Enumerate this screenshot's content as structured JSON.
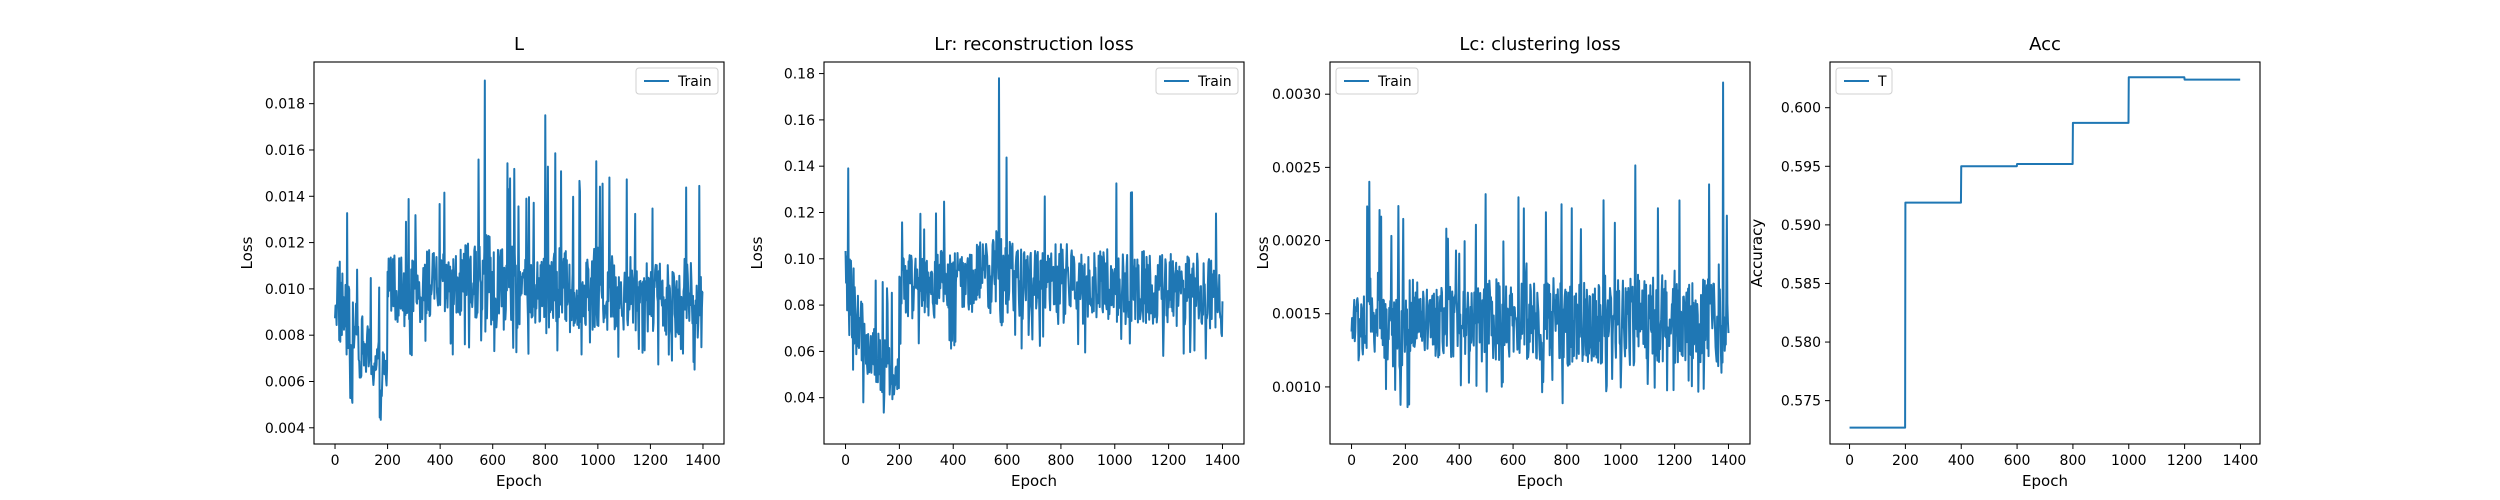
{
  "chart_data": [
    {
      "type": "line",
      "title": "L",
      "xlabel": "Epoch",
      "ylabel": "Loss",
      "xlim": [
        -80,
        1480
      ],
      "ylim": [
        0.0033,
        0.0198
      ],
      "xticks": [
        "0",
        "200",
        "400",
        "600",
        "800",
        "1000",
        "1200",
        "1400"
      ],
      "yticks": [
        "0.004",
        "0.006",
        "0.008",
        "0.010",
        "0.012",
        "0.014",
        "0.016",
        "0.018"
      ],
      "legend": {
        "position": "upper-right",
        "entries": [
          "Train"
        ]
      },
      "grid": false,
      "color": "#1f77b4",
      "series": [
        {
          "name": "Train",
          "x": [
            0,
            50,
            100,
            150,
            199,
            200,
            250,
            300,
            350,
            400,
            450,
            500,
            550,
            570,
            600,
            650,
            700,
            750,
            800,
            850,
            900,
            950,
            1000,
            1050,
            1100,
            1150,
            1200,
            1250,
            1300,
            1350,
            1400
          ],
          "mean": [
            0.01,
            0.0085,
            0.0075,
            0.0068,
            0.0062,
            0.0105,
            0.01,
            0.0098,
            0.0102,
            0.0101,
            0.01,
            0.0103,
            0.0104,
            0.0103,
            0.0102,
            0.0101,
            0.01,
            0.0099,
            0.01,
            0.0101,
            0.0098,
            0.01,
            0.0099,
            0.0098,
            0.01,
            0.0097,
            0.0098,
            0.0096,
            0.0097,
            0.0096,
            0.0092
          ],
          "low": [
            0.0062,
            0.005,
            0.0047,
            0.0042,
            0.004,
            0.0072,
            0.0068,
            0.0067,
            0.007,
            0.0071,
            0.007,
            0.0072,
            0.0073,
            0.0072,
            0.0072,
            0.0071,
            0.007,
            0.0069,
            0.007,
            0.0071,
            0.0068,
            0.007,
            0.0069,
            0.0068,
            0.007,
            0.0067,
            0.0068,
            0.0066,
            0.0067,
            0.0066,
            0.0063
          ],
          "high": [
            0.0165,
            0.013,
            0.0115,
            0.0105,
            0.0095,
            0.014,
            0.0145,
            0.0135,
            0.0145,
            0.014,
            0.0145,
            0.015,
            0.016,
            0.019,
            0.0165,
            0.016,
            0.015,
            0.0145,
            0.0175,
            0.0155,
            0.015,
            0.0145,
            0.016,
            0.015,
            0.0155,
            0.0145,
            0.015,
            0.014,
            0.0155,
            0.0145,
            0.0153
          ]
        }
      ]
    },
    {
      "type": "line",
      "title": "Lr: reconstruction loss",
      "xlabel": "Epoch",
      "ylabel": "Loss",
      "xlim": [
        -80,
        1480
      ],
      "ylim": [
        0.02,
        0.185
      ],
      "xticks": [
        "0",
        "200",
        "400",
        "600",
        "800",
        "1000",
        "1200",
        "1400"
      ],
      "yticks": [
        "0.04",
        "0.06",
        "0.08",
        "0.10",
        "0.12",
        "0.14",
        "0.16",
        "0.18"
      ],
      "legend": {
        "position": "upper-right",
        "entries": [
          "Train"
        ]
      },
      "grid": false,
      "color": "#1f77b4",
      "series": [
        {
          "name": "Train",
          "x": [
            0,
            50,
            100,
            150,
            199,
            200,
            250,
            300,
            350,
            400,
            450,
            500,
            550,
            570,
            600,
            650,
            700,
            750,
            800,
            850,
            900,
            950,
            1000,
            1050,
            1100,
            1150,
            1200,
            1250,
            1300,
            1350,
            1400
          ],
          "mean": [
            0.09,
            0.07,
            0.06,
            0.052,
            0.045,
            0.092,
            0.088,
            0.086,
            0.09,
            0.089,
            0.09,
            0.092,
            0.093,
            0.092,
            0.091,
            0.09,
            0.089,
            0.088,
            0.089,
            0.09,
            0.087,
            0.089,
            0.088,
            0.087,
            0.089,
            0.086,
            0.087,
            0.085,
            0.086,
            0.085,
            0.08
          ],
          "low": [
            0.05,
            0.038,
            0.034,
            0.03,
            0.028,
            0.06,
            0.058,
            0.057,
            0.06,
            0.061,
            0.06,
            0.062,
            0.063,
            0.062,
            0.062,
            0.061,
            0.06,
            0.059,
            0.06,
            0.061,
            0.058,
            0.06,
            0.059,
            0.058,
            0.06,
            0.057,
            0.058,
            0.056,
            0.057,
            0.056,
            0.05
          ],
          "high": [
            0.148,
            0.115,
            0.1,
            0.09,
            0.08,
            0.125,
            0.13,
            0.12,
            0.13,
            0.125,
            0.13,
            0.135,
            0.145,
            0.178,
            0.15,
            0.145,
            0.135,
            0.13,
            0.16,
            0.14,
            0.135,
            0.13,
            0.145,
            0.135,
            0.14,
            0.13,
            0.135,
            0.125,
            0.14,
            0.13,
            0.138
          ]
        }
      ]
    },
    {
      "type": "line",
      "title": "Lc: clustering loss",
      "xlabel": "Epoch",
      "ylabel": "Loss",
      "xlim": [
        -80,
        1480
      ],
      "ylim": [
        0.00061,
        0.00322
      ],
      "xticks": [
        "0",
        "200",
        "400",
        "600",
        "800",
        "1000",
        "1200",
        "1400"
      ],
      "yticks": [
        "0.0010",
        "0.0015",
        "0.0020",
        "0.0025",
        "0.0030"
      ],
      "legend": {
        "position": "upper-left",
        "entries": [
          "Train"
        ]
      },
      "grid": false,
      "color": "#1f77b4",
      "series": [
        {
          "name": "Train",
          "x": [
            0,
            50,
            100,
            150,
            200,
            250,
            300,
            350,
            400,
            450,
            500,
            550,
            600,
            650,
            700,
            750,
            800,
            850,
            900,
            950,
            1000,
            1050,
            1100,
            1150,
            1200,
            1250,
            1300,
            1350,
            1380,
            1400
          ],
          "mean": [
            0.0014,
            0.00145,
            0.0015,
            0.0014,
            0.0014,
            0.00145,
            0.00142,
            0.00145,
            0.00143,
            0.00145,
            0.00148,
            0.00145,
            0.00143,
            0.0015,
            0.00145,
            0.00147,
            0.00145,
            0.00143,
            0.00146,
            0.00148,
            0.00145,
            0.0015,
            0.00145,
            0.00146,
            0.00147,
            0.00145,
            0.00148,
            0.00147,
            0.0015,
            0.0014
          ],
          "low": [
            0.0009,
            0.00085,
            0.0009,
            0.0009,
            0.00085,
            0.00075,
            0.0009,
            0.00092,
            0.0009,
            0.00092,
            0.00095,
            0.0009,
            0.0009,
            0.00095,
            0.00092,
            0.00093,
            0.00082,
            0.0009,
            0.00093,
            0.00095,
            0.00092,
            0.00095,
            0.00092,
            0.00093,
            0.00094,
            0.00092,
            0.00095,
            0.00094,
            0.00096,
            0.00105
          ],
          "high": [
            0.0018,
            0.0025,
            0.0023,
            0.0022,
            0.0025,
            0.0021,
            0.002,
            0.0021,
            0.002,
            0.0021,
            0.0025,
            0.0022,
            0.0021,
            0.0026,
            0.0022,
            0.0023,
            0.0023,
            0.0022,
            0.0024,
            0.0025,
            0.0023,
            0.00265,
            0.0023,
            0.0024,
            0.0025,
            0.0023,
            0.0025,
            0.0024,
            0.00308,
            0.0019
          ]
        }
      ]
    },
    {
      "type": "line",
      "title": "Acc",
      "xlabel": "Epoch",
      "ylabel": "Accuracy",
      "xlim": [
        -70,
        1470
      ],
      "ylim": [
        0.5713,
        0.6039
      ],
      "xticks": [
        "0",
        "200",
        "400",
        "600",
        "800",
        "1000",
        "1200",
        "1400"
      ],
      "yticks": [
        "0.575",
        "0.580",
        "0.585",
        "0.590",
        "0.595",
        "0.600"
      ],
      "legend": {
        "position": "upper-left",
        "entries": [
          "T"
        ]
      },
      "grid": false,
      "color": "#1f77b4",
      "series": [
        {
          "name": "T",
          "x": [
            0,
            199,
            200,
            399,
            400,
            599,
            600,
            799,
            800,
            999,
            1000,
            1199,
            1200,
            1399
          ],
          "y": [
            0.5727,
            0.5727,
            0.5919,
            0.5919,
            0.595,
            0.595,
            0.5952,
            0.5952,
            0.5987,
            0.5987,
            0.6026,
            0.6026,
            0.6024,
            0.6024
          ]
        }
      ]
    }
  ]
}
